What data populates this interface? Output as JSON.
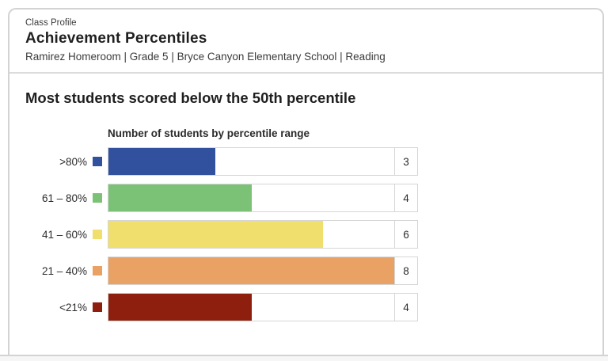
{
  "header": {
    "eyebrow": "Class Profile",
    "title": "Achievement Percentiles",
    "subtitle": "Ramirez Homeroom | Grade 5 | Bryce Canyon Elementary School | Reading"
  },
  "main": {
    "headline": "Most students scored below the 50th percentile"
  },
  "chart_data": {
    "type": "bar",
    "orientation": "horizontal",
    "title": "Number of students by percentile range",
    "categories": [
      ">80%",
      "61 – 80%",
      "41 – 60%",
      "21 – 40%",
      "<21%"
    ],
    "values": [
      3,
      4,
      6,
      8,
      4
    ],
    "colors": [
      "#31519E",
      "#7CC276",
      "#F1DF6D",
      "#E9A264",
      "#8E1F0E"
    ],
    "xmax": 8,
    "value_labels_shown": true,
    "legend_position": "swatch beside each category label",
    "grid": false
  }
}
